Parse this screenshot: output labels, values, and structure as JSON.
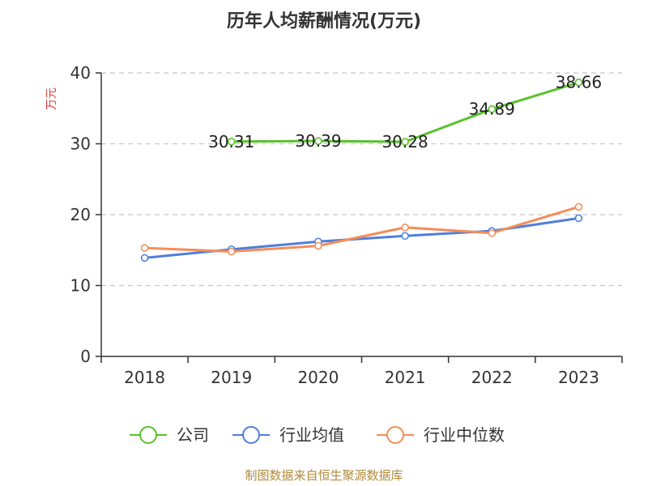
{
  "chart_data": {
    "type": "line",
    "title": "历年人均薪酬情况(万元)",
    "ylabel": "万元",
    "xlabel": "",
    "categories": [
      "2018",
      "2019",
      "2020",
      "2021",
      "2022",
      "2023"
    ],
    "ylim": [
      0,
      40
    ],
    "yticks": [
      0,
      10,
      20,
      30,
      40
    ],
    "grid": true,
    "legend_position": "bottom",
    "series": [
      {
        "name": "公司",
        "color": "#5ac12e",
        "values": [
          null,
          30.31,
          30.39,
          30.28,
          34.89,
          38.66
        ],
        "labels": [
          "",
          "30.31",
          "30.39",
          "30.28",
          "34.89",
          "38.66"
        ]
      },
      {
        "name": "行业均值",
        "color": "#4f7fdc",
        "values": [
          13.9,
          15.1,
          16.2,
          17.0,
          17.7,
          19.5
        ]
      },
      {
        "name": "行业中位数",
        "color": "#f58d58",
        "values": [
          15.3,
          14.8,
          15.6,
          18.2,
          17.4,
          21.1
        ]
      }
    ]
  },
  "source": "制图数据来自恒生聚源数据库"
}
